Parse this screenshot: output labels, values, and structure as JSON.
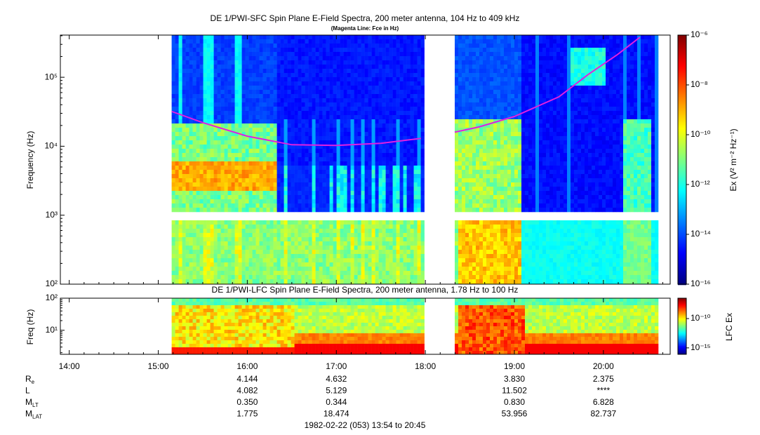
{
  "chart_data": [
    {
      "type": "spectrogram",
      "title": "DE 1/PWI-SFC  Spin Plane E-Field Spectra, 200 meter antenna, 104 Hz to 409 kHz",
      "subtitle": "(Magenta Line: Fce in Hz)",
      "y_label": "Frequency (Hz)",
      "log_y": true,
      "ylim": [
        100,
        409000
      ],
      "yticks": [
        {
          "value": 100,
          "label": "10²"
        },
        {
          "value": 1000,
          "label": "10³"
        },
        {
          "value": 10000,
          "label": "10⁴"
        },
        {
          "value": 100000,
          "label": "10⁵"
        }
      ],
      "colorbar": {
        "label": "Ex (V² m⁻² Hz⁻¹)",
        "log": true,
        "zlim": [
          1e-16,
          1e-06
        ],
        "zticks": [
          {
            "value": 1e-16,
            "label": "10⁻¹⁶"
          },
          {
            "value": 1e-14,
            "label": "10⁻¹⁴"
          },
          {
            "value": 1e-12,
            "label": "10⁻¹²"
          },
          {
            "value": 1e-10,
            "label": "10⁻¹⁰"
          },
          {
            "value": 1e-08,
            "label": "10⁻⁸"
          },
          {
            "value": 1e-06,
            "label": "10⁻⁶"
          }
        ]
      },
      "series": [
        {
          "name": "Fce",
          "color": "#e020e0",
          "x": [
            15.15,
            15.5,
            16.0,
            16.5,
            17.0,
            17.5,
            17.95,
            18.15,
            18.33,
            18.6,
            19.0,
            19.5,
            19.83,
            20.15,
            20.41
          ],
          "values": [
            32000,
            22000,
            14000,
            10500,
            10300,
            11000,
            13000,
            null,
            16000,
            19000,
            27000,
            52000,
            110000,
            210000,
            380000
          ]
        }
      ]
    },
    {
      "type": "spectrogram",
      "title": "DE 1/PWI-LFC  Spin Plane E-Field Spectra, 200 meter antenna, 1.78 Hz to 100 Hz",
      "y_label": "Freq (Hz)",
      "log_y": true,
      "ylim": [
        1.78,
        100
      ],
      "yticks": [
        {
          "value": 10,
          "label": "10¹"
        },
        {
          "value": 100,
          "label": "10²"
        }
      ],
      "colorbar": {
        "label": "LFC Ex",
        "log": true,
        "zlim": [
          8e-17,
          3e-07
        ],
        "zticks": [
          {
            "value": 1e-15,
            "label": "10⁻¹⁵"
          },
          {
            "value": 1e-10,
            "label": "10⁻¹⁰"
          }
        ]
      }
    }
  ],
  "xaxis": {
    "xlim": [
      13.9,
      20.75
    ],
    "xticks": [
      {
        "value": 14,
        "label": "14:00"
      },
      {
        "value": 15,
        "label": "15:00"
      },
      {
        "value": 16,
        "label": "16:00"
      },
      {
        "value": 17,
        "label": "17:00"
      },
      {
        "value": 18,
        "label": "18:00"
      },
      {
        "value": 19,
        "label": "19:00"
      },
      {
        "value": 20,
        "label": "20:00"
      }
    ]
  },
  "ephemeris": [
    {
      "label": "R",
      "subscript": "e",
      "values": [
        null,
        null,
        "4.144",
        "4.632",
        null,
        "3.830",
        "2.375"
      ]
    },
    {
      "label": "L",
      "values": [
        null,
        null,
        "4.082",
        "5.129",
        null,
        "11.502",
        "****"
      ]
    },
    {
      "label": "M",
      "subscript": "LT",
      "values": [
        null,
        null,
        "0.350",
        "0.344",
        null,
        "0.830",
        "6.828"
      ]
    },
    {
      "label": "M",
      "subscript": "LAT",
      "values": [
        null,
        null,
        "1.775",
        "18.474",
        null,
        "53.956",
        "82.737"
      ]
    }
  ],
  "footer": "1982-02-22 (053) 13:54 to 20:45"
}
